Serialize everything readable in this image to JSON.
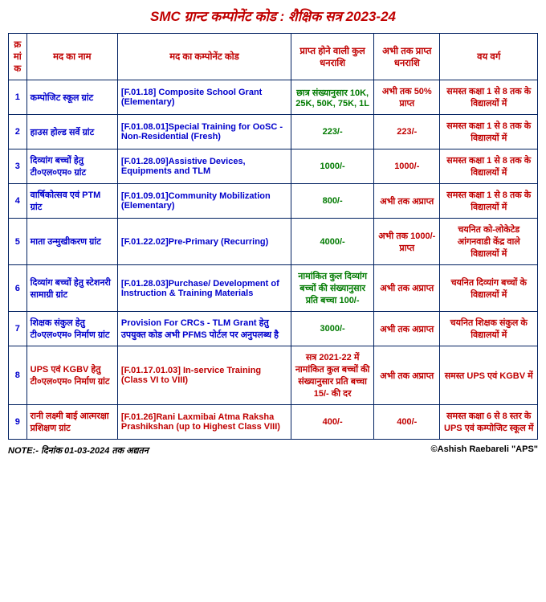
{
  "title_text": "SMC ग्रान्ट कम्पोनेंट कोड : शैक्षिक सत्र 2023-24",
  "title_color": "#c00000",
  "border_color": "#002060",
  "colw": {
    "sn": 22,
    "name": 110,
    "code": 210,
    "amount": 100,
    "recv": 80,
    "age": 118
  },
  "headers": {
    "sn": {
      "label": "क्रमांक",
      "color": "#c00000"
    },
    "name": {
      "label": "मद का नाम",
      "color": "#c00000"
    },
    "code": {
      "label": "मद का कम्पोनेंट कोड",
      "color": "#c00000"
    },
    "amount": {
      "label": "प्राप्त होने वाली कुल  धनराशि",
      "color": "#c00000"
    },
    "recv": {
      "label": "अभी तक प्राप्त धनराशि",
      "color": "#c00000"
    },
    "age": {
      "label": "वय वर्ग",
      "color": "#c00000"
    }
  },
  "rows": [
    {
      "sn": "1",
      "sn_color": "#0000cc",
      "name": "कम्पोजिट स्कूल ग्रांट",
      "name_color": "#0000cc",
      "code": "[F.01.18] Composite School Grant (Elementary)",
      "code_color": "#0000cc",
      "amount": "छात्र संख्यानुसार 10K, 25K, 50K, 75K, 1L",
      "amount_color": "#007a00",
      "recv": "अभी तक 50% प्राप्त",
      "recv_color": "#c00000",
      "age": "समस्त कक्षा 1 से 8 तक के विद्यालयों में",
      "age_color": "#c00000"
    },
    {
      "sn": "2",
      "sn_color": "#0000cc",
      "name": "हाउस होल्ड सर्वे ग्रांट",
      "name_color": "#0000cc",
      "code": "[F.01.08.01]Special Training for OoSC - Non-Residential (Fresh)",
      "code_color": "#0000cc",
      "amount": "223/-",
      "amount_color": "#007a00",
      "recv": "223/-",
      "recv_color": "#c00000",
      "age": "समस्त कक्षा 1 से 8 तक के विद्यालयों में",
      "age_color": "#c00000"
    },
    {
      "sn": "3",
      "sn_color": "#0000cc",
      "name": "दिव्यांग बच्चों हेतु टी०एल०एम० ग्रांट",
      "name_color": "#0000cc",
      "code": "[F.01.28.09]Assistive Devices, Equipments and TLM",
      "code_color": "#0000cc",
      "amount": "1000/-",
      "amount_color": "#007a00",
      "recv": "1000/-",
      "recv_color": "#c00000",
      "age": "समस्त कक्षा 1 से 8 तक के विद्यालयों में",
      "age_color": "#c00000"
    },
    {
      "sn": "4",
      "sn_color": "#0000cc",
      "name": "वार्षिकोत्सव एवं PTM ग्रांट",
      "name_color": "#0000cc",
      "code": "[F.01.09.01]Community Mobilization (Elementary)",
      "code_color": "#0000cc",
      "amount": "800/-",
      "amount_color": "#007a00",
      "recv": "अभी तक अप्राप्त",
      "recv_color": "#c00000",
      "age": "समस्त कक्षा 1 से 8 तक के विद्यालयों में",
      "age_color": "#c00000"
    },
    {
      "sn": "5",
      "sn_color": "#0000cc",
      "name": "माता उन्मुखीकरण ग्रांट",
      "name_color": "#0000cc",
      "code": "[F.01.22.02]Pre-Primary (Recurring)",
      "code_color": "#0000cc",
      "amount": "4000/-",
      "amount_color": "#007a00",
      "recv": "अभी तक 1000/- प्राप्त",
      "recv_color": "#c00000",
      "age": "चयनित को-लोकेटेड आंगनवाडी केंद्र वाले विद्यालयों में",
      "age_color": "#c00000"
    },
    {
      "sn": "6",
      "sn_color": "#0000cc",
      "name": "दिव्यांग बच्चों हेतु स्टेशनरी सामाग्री ग्रांट",
      "name_color": "#0000cc",
      "code": "[F.01.28.03]Purchase/ Development of Instruction & Training Materials",
      "code_color": "#0000cc",
      "amount": "नामांकित कुल दिव्यांग बच्चों की संख्यानुसार प्रति बच्चा 100/-",
      "amount_color": "#007a00",
      "recv": "अभी तक अप्राप्त",
      "recv_color": "#c00000",
      "age": "चयनित दिव्यांग बच्चों के विद्यालयों में",
      "age_color": "#c00000"
    },
    {
      "sn": "7",
      "sn_color": "#0000cc",
      "name": "शिक्षक संकुल हेतु टी०एल०एम० निर्माण ग्रांट",
      "name_color": "#0000cc",
      "code": "Provision For CRCs - TLM Grant हेतु उपयुक्त कोड अभी PFMS पोर्टल पर अनुपलब्ध है",
      "code_color": "#0000cc",
      "amount": "3000/-",
      "amount_color": "#007a00",
      "recv": "अभी तक अप्राप्त",
      "recv_color": "#c00000",
      "age": "चयनित शिक्षक संकुल के विद्यालयों में",
      "age_color": "#c00000"
    },
    {
      "sn": "8",
      "sn_color": "#0000cc",
      "name": "UPS एवं KGBV हेतु टी०एल०एम० निर्माण ग्रांट",
      "name_color": "#c00000",
      "code": "[F.01.17.01.03] In-service Training (Class VI to VIII)",
      "code_color": "#c00000",
      "amount": "सत्र 2021-22 में नामांकित कुल बच्चों की संख्यानुसार प्रति बच्चा 15/- की दर",
      "amount_color": "#c00000",
      "recv": "अभी तक अप्राप्त",
      "recv_color": "#c00000",
      "age": "समस्त UPS एवं KGBV में",
      "age_color": "#c00000"
    },
    {
      "sn": "9",
      "sn_color": "#0000cc",
      "name": "रानी लक्ष्मी बाई आत्मरक्षा प्रशिक्षण ग्रांट",
      "name_color": "#c00000",
      "code": "[F.01.26]Rani Laxmibai Atma Raksha Prashikshan (up to Highest Class VIII)",
      "code_color": "#c00000",
      "amount": "400/-",
      "amount_color": "#c00000",
      "recv": "400/-",
      "recv_color": "#c00000",
      "age": "समस्त कक्षा 6 से 8 स्तर के UPS एवं कम्पोजिट स्कूल में",
      "age_color": "#c00000"
    }
  ],
  "footer_left": "NOTE:- दिनांक 01-03-2024 तक अद्यतन",
  "footer_right": "©Ashish Raebareli \"APS\""
}
